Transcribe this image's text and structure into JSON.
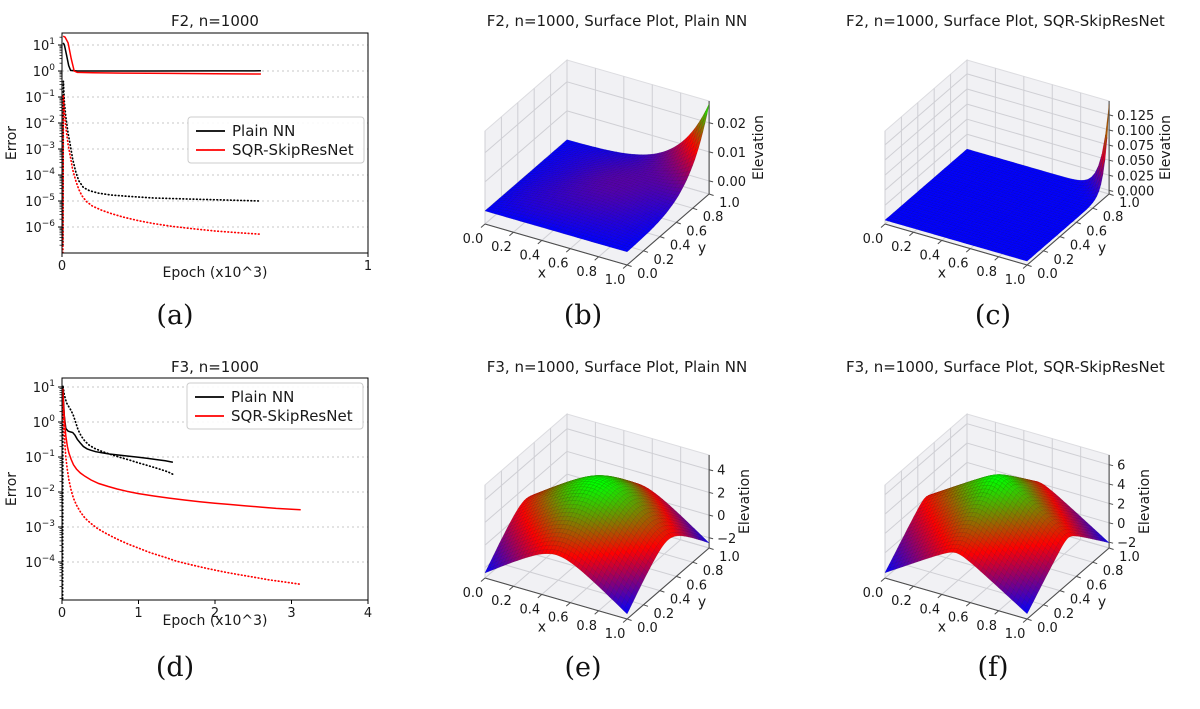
{
  "colors": {
    "plain_nn": "#000000",
    "sqr_skipresnet": "#ff0000",
    "grid_2d": "#b5b5b5",
    "pane_fill": "#f1f1f4",
    "pane_grid": "#cfcfd4",
    "axis_3d": "#4d4d4d",
    "spine": "#000000",
    "legend_border": "#cccccc",
    "text": "#1a1a1a"
  },
  "captions": {
    "a": "(a)",
    "b": "(b)",
    "c": "(c)",
    "d": "(d)",
    "e": "(e)",
    "f": "(f)"
  },
  "chart_data": [
    {
      "id": "a",
      "type": "line",
      "title": "F2, n=1000",
      "xlabel": "Epoch (x10^3)",
      "ylabel": "Error",
      "xlim": [
        0,
        1
      ],
      "xticks": [
        0,
        1
      ],
      "xtick_labels": [
        "0",
        "1"
      ],
      "ylog": true,
      "ytick_exps": [
        1,
        0,
        -1,
        -2,
        -3,
        -4,
        -5,
        -6
      ],
      "grid": "dashed-horizontal-decades",
      "legend": {
        "position": "center-right",
        "entries": [
          {
            "label": "Plain NN",
            "color": "#000000"
          },
          {
            "label": "SQR-SkipResNet",
            "color": "#ff0000"
          }
        ]
      },
      "series": [
        {
          "legend_label": "Plain NN",
          "style": "solid",
          "color": "#000000",
          "points": [
            [
              0.004,
              12
            ],
            [
              0.008,
              10
            ],
            [
              0.015,
              4
            ],
            [
              0.022,
              1.6
            ],
            [
              0.028,
              1.05
            ],
            [
              0.05,
              1.0
            ],
            [
              0.15,
              1.0
            ],
            [
              0.3,
              1.0
            ],
            [
              0.5,
              1.01
            ],
            [
              0.65,
              1.02
            ]
          ]
        },
        {
          "legend_label": "SQR-SkipResNet",
          "style": "solid",
          "color": "#ff0000",
          "points": [
            [
              0.004,
              22
            ],
            [
              0.01,
              20
            ],
            [
              0.02,
              12
            ],
            [
              0.03,
              3
            ],
            [
              0.04,
              1.0
            ],
            [
              0.05,
              0.88
            ],
            [
              0.1,
              0.85
            ],
            [
              0.2,
              0.83
            ],
            [
              0.35,
              0.81
            ],
            [
              0.5,
              0.79
            ],
            [
              0.65,
              0.77
            ]
          ]
        },
        {
          "legend_label": "Plain NN",
          "style": "dotted",
          "color": "#000000",
          "points": [
            [
              0.003,
              2e-07
            ],
            [
              0.0045,
              0.4
            ],
            [
              0.008,
              0.06
            ],
            [
              0.013,
              0.015
            ],
            [
              0.02,
              0.004
            ],
            [
              0.028,
              0.0012
            ],
            [
              0.035,
              0.0004
            ],
            [
              0.045,
              0.00013
            ],
            [
              0.055,
              6e-05
            ],
            [
              0.07,
              3.3e-05
            ],
            [
              0.09,
              2.5e-05
            ],
            [
              0.12,
              2e-05
            ],
            [
              0.16,
              1.7e-05
            ],
            [
              0.22,
              1.5e-05
            ],
            [
              0.3,
              1.3e-05
            ],
            [
              0.4,
              1.2e-05
            ],
            [
              0.52,
              1.1e-05
            ],
            [
              0.65,
              1e-05
            ]
          ]
        },
        {
          "legend_label": "SQR-SkipResNet",
          "style": "dotted",
          "color": "#ff0000",
          "points": [
            [
              0.003,
              1e-07
            ],
            [
              0.0045,
              0.12
            ],
            [
              0.008,
              0.025
            ],
            [
              0.013,
              0.006
            ],
            [
              0.02,
              0.0015
            ],
            [
              0.028,
              0.00045
            ],
            [
              0.035,
              0.00016
            ],
            [
              0.045,
              6e-05
            ],
            [
              0.055,
              2.8e-05
            ],
            [
              0.065,
              1.6e-05
            ],
            [
              0.08,
              9.5e-06
            ],
            [
              0.1,
              6.3e-06
            ],
            [
              0.13,
              4.4e-06
            ],
            [
              0.16,
              3.3e-06
            ],
            [
              0.2,
              2.4e-06
            ],
            [
              0.25,
              1.75e-06
            ],
            [
              0.3,
              1.35e-06
            ],
            [
              0.36,
              1.05e-06
            ],
            [
              0.43,
              8.5e-07
            ],
            [
              0.5,
              7e-07
            ],
            [
              0.58,
              6e-07
            ],
            [
              0.65,
              5.3e-07
            ]
          ]
        }
      ]
    },
    {
      "id": "b",
      "type": "surface3d",
      "title": "F2, n=1000, Surface Plot, Plain NN",
      "xlabel": "x",
      "ylabel": "y",
      "zlabel": "Elevation",
      "xtick_labels": [
        "0.0",
        "0.2",
        "0.4",
        "0.6",
        "0.8",
        "1.0"
      ],
      "ytick_labels": [
        "0.0",
        "0.2",
        "0.4",
        "0.6",
        "0.8",
        "1.0"
      ],
      "zticks": [
        {
          "v": 0.0,
          "label": "0.00"
        },
        {
          "v": 0.01,
          "label": "0.01"
        },
        {
          "v": 0.02,
          "label": "0.02"
        }
      ],
      "zlim": [
        -0.0045,
        0.0275
      ],
      "surface": {
        "kind": "bump_spike",
        "bump": 0.0035,
        "wobble": 0.3,
        "spike": 0.0265,
        "power": 9,
        "description": "nearly flat low surface with sharp rise to ~0.026 at corner x=1,y=1"
      },
      "colormap": "brg"
    },
    {
      "id": "c",
      "type": "surface3d",
      "title": "F2, n=1000, Surface Plot, SQR-SkipResNet",
      "xlabel": "x",
      "ylabel": "y",
      "zlabel": "Elevation",
      "xtick_labels": [
        "0.0",
        "0.2",
        "0.4",
        "0.6",
        "0.8",
        "1.0"
      ],
      "ytick_labels": [
        "0.0",
        "0.2",
        "0.4",
        "0.6",
        "0.8",
        "1.0"
      ],
      "zticks": [
        {
          "v": 0.0,
          "label": "0.000"
        },
        {
          "v": 0.025,
          "label": "0.025"
        },
        {
          "v": 0.05,
          "label": "0.050"
        },
        {
          "v": 0.075,
          "label": "0.075"
        },
        {
          "v": 0.1,
          "label": "0.100"
        },
        {
          "v": 0.125,
          "label": "0.125"
        }
      ],
      "zlim": [
        -0.006,
        0.148
      ],
      "surface": {
        "kind": "flat_spike",
        "base": 0.0009,
        "spike": 0.142,
        "power": 18,
        "description": "flat blue surface with very narrow spike to ~0.14 at corner x=1,y=1"
      },
      "colormap": "brg"
    },
    {
      "id": "d",
      "type": "line",
      "title": "F3, n=1000",
      "xlabel": "Epoch (x10^3)",
      "ylabel": "Error",
      "xlim": [
        0,
        4
      ],
      "xticks": [
        0,
        1,
        2,
        3,
        4
      ],
      "xtick_labels": [
        "0",
        "1",
        "2",
        "3",
        "4"
      ],
      "ylog": true,
      "ytick_exps": [
        1,
        0,
        -1,
        -2,
        -3,
        -4
      ],
      "grid": "dashed-horizontal-decades",
      "legend": {
        "position": "top-right",
        "entries": [
          {
            "label": "Plain NN",
            "color": "#000000"
          },
          {
            "label": "SQR-SkipResNet",
            "color": "#ff0000"
          }
        ]
      },
      "series": [
        {
          "legend_label": "Plain NN",
          "style": "solid",
          "color": "#000000",
          "points": [
            [
              0.01,
              11
            ],
            [
              0.02,
              4
            ],
            [
              0.03,
              1.5
            ],
            [
              0.05,
              0.65
            ],
            [
              0.08,
              0.55
            ],
            [
              0.11,
              0.52
            ],
            [
              0.14,
              0.5
            ],
            [
              0.17,
              0.42
            ],
            [
              0.2,
              0.32
            ],
            [
              0.24,
              0.25
            ],
            [
              0.28,
              0.2
            ],
            [
              0.33,
              0.17
            ],
            [
              0.38,
              0.155
            ],
            [
              0.44,
              0.142
            ],
            [
              0.52,
              0.132
            ],
            [
              0.62,
              0.122
            ],
            [
              0.72,
              0.115
            ],
            [
              0.85,
              0.107
            ],
            [
              1.0,
              0.098
            ],
            [
              1.12,
              0.091
            ],
            [
              1.25,
              0.084
            ],
            [
              1.35,
              0.078
            ],
            [
              1.45,
              0.071
            ]
          ]
        },
        {
          "legend_label": "Plain NN",
          "style": "dotted",
          "color": "#000000",
          "points": [
            [
              0.008,
              1.5e-06
            ],
            [
              0.012,
              11
            ],
            [
              0.03,
              6
            ],
            [
              0.06,
              3.5
            ],
            [
              0.09,
              2.7
            ],
            [
              0.12,
              2.1
            ],
            [
              0.15,
              1.5
            ],
            [
              0.18,
              0.95
            ],
            [
              0.21,
              0.6
            ],
            [
              0.25,
              0.4
            ],
            [
              0.3,
              0.28
            ],
            [
              0.36,
              0.215
            ],
            [
              0.43,
              0.175
            ],
            [
              0.5,
              0.15
            ],
            [
              0.58,
              0.13
            ],
            [
              0.67,
              0.112
            ],
            [
              0.77,
              0.096
            ],
            [
              0.88,
              0.082
            ],
            [
              1.0,
              0.068
            ],
            [
              1.12,
              0.057
            ],
            [
              1.25,
              0.047
            ],
            [
              1.38,
              0.038
            ],
            [
              1.45,
              0.032
            ]
          ]
        },
        {
          "legend_label": "SQR-SkipResNet",
          "style": "solid",
          "color": "#ff0000",
          "points": [
            [
              0.01,
              9
            ],
            [
              0.02,
              3
            ],
            [
              0.035,
              1.0
            ],
            [
              0.05,
              0.4
            ],
            [
              0.07,
              0.2
            ],
            [
              0.09,
              0.13
            ],
            [
              0.12,
              0.085
            ],
            [
              0.15,
              0.06
            ],
            [
              0.19,
              0.045
            ],
            [
              0.24,
              0.035
            ],
            [
              0.3,
              0.028
            ],
            [
              0.38,
              0.022
            ],
            [
              0.48,
              0.0175
            ],
            [
              0.6,
              0.0145
            ],
            [
              0.72,
              0.0122
            ],
            [
              0.85,
              0.0105
            ],
            [
              1.0,
              0.009
            ],
            [
              1.2,
              0.0077
            ],
            [
              1.4,
              0.0067
            ],
            [
              1.6,
              0.0059
            ],
            [
              1.8,
              0.0053
            ],
            [
              2.0,
              0.0048
            ],
            [
              2.2,
              0.0044
            ],
            [
              2.4,
              0.004
            ],
            [
              2.6,
              0.0037
            ],
            [
              2.8,
              0.0034
            ],
            [
              3.0,
              0.0032
            ],
            [
              3.12,
              0.0031
            ]
          ]
        },
        {
          "legend_label": "SQR-SkipResNet",
          "style": "dotted",
          "color": "#ff0000",
          "points": [
            [
              0.01,
              6
            ],
            [
              0.02,
              1.0
            ],
            [
              0.035,
              0.28
            ],
            [
              0.05,
              0.1
            ],
            [
              0.07,
              0.042
            ],
            [
              0.09,
              0.022
            ],
            [
              0.12,
              0.011
            ],
            [
              0.15,
              0.0066
            ],
            [
              0.19,
              0.0042
            ],
            [
              0.24,
              0.0027
            ],
            [
              0.3,
              0.0018
            ],
            [
              0.38,
              0.00125
            ],
            [
              0.46,
              0.00092
            ],
            [
              0.55,
              0.0007
            ],
            [
              0.65,
              0.00054
            ],
            [
              0.75,
              0.00042
            ],
            [
              0.87,
              0.00032
            ],
            [
              1.0,
              0.00025
            ],
            [
              1.15,
              0.000185
            ],
            [
              1.35,
              0.000135
            ],
            [
              1.5,
              0.000105
            ],
            [
              1.7,
              8.2e-05
            ],
            [
              1.9,
              6.5e-05
            ],
            [
              2.1,
              5.3e-05
            ],
            [
              2.3,
              4.4e-05
            ],
            [
              2.5,
              3.7e-05
            ],
            [
              2.7,
              3.1e-05
            ],
            [
              2.9,
              2.7e-05
            ],
            [
              3.12,
              2.3e-05
            ]
          ]
        }
      ]
    },
    {
      "id": "e",
      "type": "surface3d",
      "title": "F3, n=1000, Surface Plot, Plain NN",
      "xlabel": "x",
      "ylabel": "y",
      "zlabel": "Elevation",
      "xtick_labels": [
        "0.0",
        "0.2",
        "0.4",
        "0.6",
        "0.8",
        "1.0"
      ],
      "ytick_labels": [
        "0.0",
        "0.2",
        "0.4",
        "0.6",
        "0.8",
        "1.0"
      ],
      "zticks": [
        {
          "v": -2,
          "label": "−2"
        },
        {
          "v": 0,
          "label": "0"
        },
        {
          "v": 2,
          "label": "2"
        },
        {
          "v": 4,
          "label": "4"
        }
      ],
      "zlim": [
        -2.9,
        5.3
      ],
      "surface": {
        "kind": "tent",
        "A": 6.9,
        "B": 9.0,
        "eps": 0.02,
        "description": "smooth green dome ~4.3 at center, red slopes, blue corner valleys ~-2.5"
      },
      "colormap": "brg"
    },
    {
      "id": "f",
      "type": "surface3d",
      "title": "F3, n=1000, Surface Plot, SQR-SkipResNet",
      "xlabel": "x",
      "ylabel": "y",
      "zlabel": "Elevation",
      "xtick_labels": [
        "0.0",
        "0.2",
        "0.4",
        "0.6",
        "0.8",
        "1.0"
      ],
      "ytick_labels": [
        "0.0",
        "0.2",
        "0.4",
        "0.6",
        "0.8",
        "1.0"
      ],
      "zticks": [
        {
          "v": -2,
          "label": "−2"
        },
        {
          "v": 0,
          "label": "0"
        },
        {
          "v": 2,
          "label": "2"
        },
        {
          "v": 4,
          "label": "4"
        },
        {
          "v": 6,
          "label": "6"
        }
      ],
      "zlim": [
        -2.6,
        7.0
      ],
      "surface": {
        "kind": "tent",
        "A": 7.3,
        "B": 9.3,
        "eps": 0.003,
        "description": "sharp pyramid peak ~6.3 at center, red slopes, blue corner valleys ~-2"
      },
      "colormap": "brg"
    }
  ]
}
